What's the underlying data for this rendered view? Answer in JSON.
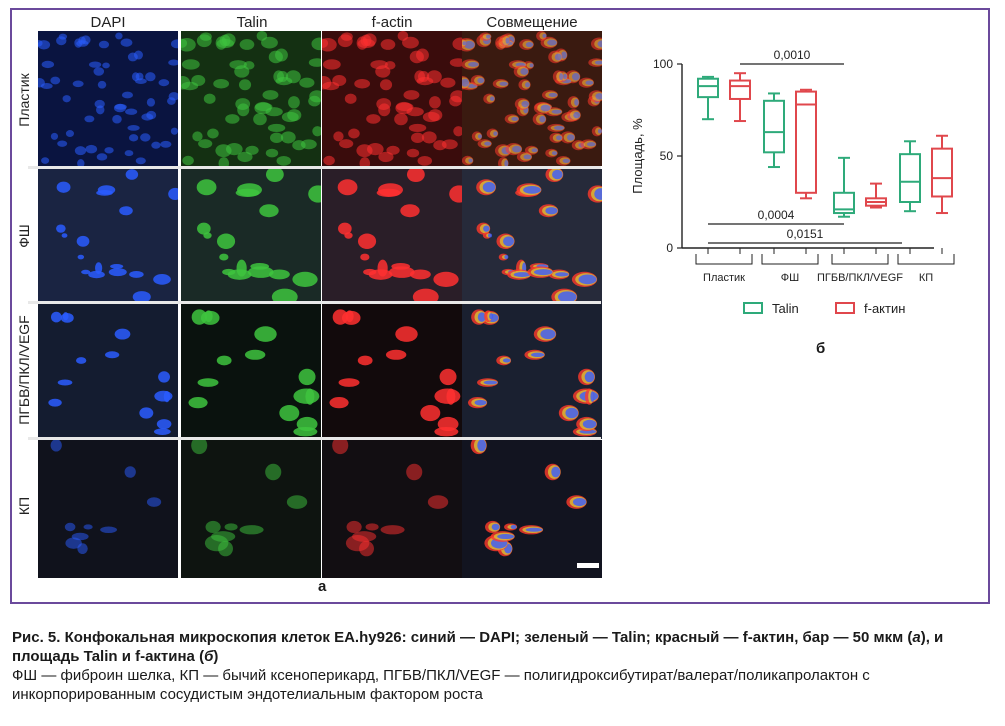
{
  "figure": {
    "column_headers": [
      "DAPI",
      "Talin",
      "f-actin",
      "Совмещение"
    ],
    "row_labels": [
      "Пластик",
      "ФШ",
      "ПГБВ/ПКЛ/VEGF",
      "КП"
    ],
    "panel_a_label": "а",
    "panel_b_label": "б"
  },
  "chart_data": {
    "type": "box",
    "ylabel": "Площадь, %",
    "ylim": [
      0,
      100
    ],
    "yticks": [
      "0",
      "50",
      "100"
    ],
    "categories": [
      "Пластик",
      "ФШ",
      "ПГБВ/ПКЛ/VEGF",
      "КП"
    ],
    "series": [
      {
        "name": "Talin",
        "color": "#2eaa7a",
        "boxes": [
          {
            "min": 70,
            "q1": 82,
            "median": 88,
            "q3": 92,
            "max": 93
          },
          {
            "min": 44,
            "q1": 52,
            "median": 63,
            "q3": 80,
            "max": 84
          },
          {
            "min": 17,
            "q1": 19,
            "median": 21,
            "q3": 30,
            "max": 49
          },
          {
            "min": 20,
            "q1": 25,
            "median": 36,
            "q3": 51,
            "max": 58
          }
        ]
      },
      {
        "name": "f-актин",
        "color": "#e0474c",
        "boxes": [
          {
            "min": 69,
            "q1": 81,
            "median": 88,
            "q3": 91,
            "max": 95
          },
          {
            "min": 27,
            "q1": 30,
            "median": 78,
            "q3": 85,
            "max": 86
          },
          {
            "min": 22,
            "q1": 23,
            "median": 25,
            "q3": 27,
            "max": 35
          },
          {
            "min": 19,
            "q1": 28,
            "median": 38,
            "q3": 54,
            "max": 61
          }
        ]
      }
    ],
    "significance": [
      {
        "label": "0,0010",
        "from": "Пластик f-актин",
        "to": "ПГБВ/ПКЛ/VEGF f-актин"
      },
      {
        "label": "0,0004",
        "from": "Пластик Talin",
        "to": "ПГБВ/ПКЛ/VEGF Talin"
      },
      {
        "label": "0,0151",
        "from": "Пластик Talin",
        "to": "КП Talin"
      }
    ],
    "legend": [
      "Talin",
      "f-актин"
    ]
  },
  "caption": {
    "main": "Рис. 5. Конфокальная микроскопия клеток EA.hy926: синий — DAPI; зеленый — Talin; красный — f-актин, бар — 50 мкм (",
    "a": "а",
    "mid": "), и площадь Talin и f-актина (",
    "b": "б",
    "end": ")",
    "note": "ФШ — фиброин шелка, КП — бычий ксеноперикард, ПГБВ/ПКЛ/VEGF — полигидроксибутират/валерат/поликапролактон с инкорпорированным сосудистым эндотелиальным фактором роста"
  }
}
